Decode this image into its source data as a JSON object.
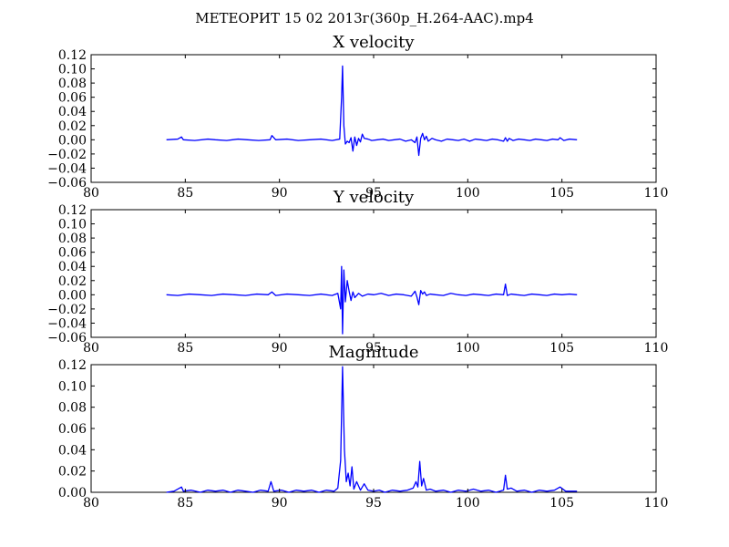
{
  "figure": {
    "suptitle": "МЕТЕОРИТ 15 02 2013г(360p_H.264-AAC).mp4"
  },
  "chart_data": [
    {
      "type": "line",
      "title": "X velocity",
      "xlabel": "",
      "ylabel": "",
      "xlim": [
        80,
        110
      ],
      "ylim": [
        -0.06,
        0.12
      ],
      "xticks": [
        80,
        85,
        90,
        95,
        100,
        105,
        110
      ],
      "yticks": [
        -0.06,
        -0.04,
        -0.02,
        0.0,
        0.02,
        0.04,
        0.06,
        0.08,
        0.1,
        0.12
      ],
      "xtick_labels": [
        "80",
        "85",
        "90",
        "95",
        "100",
        "105",
        "110"
      ],
      "ytick_labels": [
        "−0.06",
        "−0.04",
        "−0.02",
        "0.00",
        "0.02",
        "0.04",
        "0.06",
        "0.08",
        "0.10",
        "0.12"
      ],
      "grid": false,
      "series": [
        {
          "color": "#0000ff",
          "x": [
            84.0,
            84.6,
            84.8,
            84.9,
            85.5,
            86.2,
            86.6,
            87.2,
            87.8,
            88.3,
            88.9,
            89.5,
            89.6,
            89.8,
            90.4,
            91.0,
            91.6,
            92.2,
            92.8,
            93.2,
            93.3,
            93.35,
            93.42,
            93.5,
            93.6,
            93.7,
            93.8,
            93.9,
            94.0,
            94.1,
            94.2,
            94.3,
            94.4,
            94.5,
            94.7,
            94.9,
            95.2,
            95.5,
            95.8,
            96.1,
            96.4,
            96.7,
            97.0,
            97.2,
            97.3,
            97.4,
            97.5,
            97.6,
            97.7,
            97.8,
            97.9,
            98.1,
            98.3,
            98.6,
            98.9,
            99.2,
            99.5,
            99.8,
            100.1,
            100.4,
            100.7,
            101.0,
            101.3,
            101.6,
            101.9,
            102.0,
            102.1,
            102.2,
            102.4,
            102.7,
            103.0,
            103.3,
            103.6,
            103.9,
            104.2,
            104.5,
            104.8,
            104.9,
            105.1,
            105.4,
            105.8
          ],
          "y": [
            0.0,
            0.001,
            0.004,
            0.0,
            -0.001,
            0.001,
            0.0,
            -0.001,
            0.001,
            0.0,
            -0.001,
            0.0,
            0.006,
            0.0,
            0.001,
            -0.001,
            0.0,
            0.001,
            -0.001,
            0.001,
            0.06,
            0.104,
            0.02,
            -0.006,
            -0.002,
            -0.004,
            0.003,
            -0.016,
            0.004,
            -0.008,
            0.002,
            -0.003,
            0.008,
            0.002,
            0.001,
            -0.001,
            0.0,
            0.001,
            -0.001,
            0.0,
            0.001,
            -0.002,
            0.0,
            -0.004,
            0.004,
            -0.022,
            0.002,
            0.009,
            0.0,
            0.005,
            -0.002,
            0.002,
            0.0,
            -0.002,
            0.001,
            0.0,
            -0.001,
            0.001,
            -0.002,
            0.001,
            0.0,
            -0.001,
            0.001,
            0.0,
            -0.002,
            0.003,
            -0.002,
            0.002,
            -0.001,
            0.001,
            0.0,
            -0.001,
            0.001,
            0.0,
            -0.001,
            0.001,
            0.0,
            0.003,
            -0.001,
            0.001,
            0.0
          ]
        }
      ]
    },
    {
      "type": "line",
      "title": "Y velocity",
      "xlabel": "",
      "ylabel": "",
      "xlim": [
        80,
        110
      ],
      "ylim": [
        -0.06,
        0.12
      ],
      "xticks": [
        80,
        85,
        90,
        95,
        100,
        105,
        110
      ],
      "yticks": [
        -0.06,
        -0.04,
        -0.02,
        0.0,
        0.02,
        0.04,
        0.06,
        0.08,
        0.1,
        0.12
      ],
      "xtick_labels": [
        "80",
        "85",
        "90",
        "95",
        "100",
        "105",
        "110"
      ],
      "ytick_labels": [
        "−0.06",
        "−0.04",
        "−0.02",
        "0.00",
        "0.02",
        "0.04",
        "0.06",
        "0.08",
        "0.10",
        "0.12"
      ],
      "grid": false,
      "series": [
        {
          "color": "#0000ff",
          "x": [
            84.0,
            84.6,
            85.2,
            85.8,
            86.4,
            87.0,
            87.6,
            88.2,
            88.8,
            89.4,
            89.6,
            89.8,
            90.4,
            91.0,
            91.6,
            92.2,
            92.8,
            93.1,
            93.25,
            93.3,
            93.35,
            93.42,
            93.5,
            93.6,
            93.7,
            93.8,
            93.9,
            94.0,
            94.2,
            94.4,
            94.7,
            95.0,
            95.4,
            95.8,
            96.2,
            96.6,
            97.0,
            97.2,
            97.3,
            97.4,
            97.5,
            97.6,
            97.7,
            97.8,
            98.0,
            98.3,
            98.7,
            99.1,
            99.5,
            99.9,
            100.3,
            100.7,
            101.1,
            101.5,
            101.9,
            102.0,
            102.1,
            102.3,
            102.6,
            103.0,
            103.4,
            103.8,
            104.2,
            104.6,
            105.0,
            105.4,
            105.8
          ],
          "y": [
            0.0,
            -0.001,
            0.001,
            0.0,
            -0.001,
            0.001,
            0.0,
            -0.001,
            0.001,
            0.0,
            0.004,
            -0.001,
            0.001,
            0.0,
            -0.001,
            0.001,
            -0.001,
            0.002,
            -0.02,
            0.04,
            -0.055,
            0.035,
            -0.01,
            0.02,
            0.005,
            -0.008,
            0.004,
            -0.004,
            0.002,
            -0.002,
            0.001,
            0.0,
            0.002,
            -0.001,
            0.001,
            0.0,
            -0.002,
            0.005,
            -0.003,
            -0.014,
            0.006,
            0.001,
            0.004,
            -0.001,
            0.001,
            0.0,
            -0.001,
            0.002,
            0.0,
            -0.001,
            0.001,
            0.0,
            -0.001,
            0.001,
            0.0,
            0.015,
            -0.001,
            0.001,
            0.0,
            -0.001,
            0.001,
            0.0,
            -0.001,
            0.001,
            0.0,
            0.001,
            0.0
          ]
        }
      ]
    },
    {
      "type": "line",
      "title": "Magnitude",
      "xlabel": "",
      "ylabel": "",
      "xlim": [
        80,
        110
      ],
      "ylim": [
        0.0,
        0.12
      ],
      "xticks": [
        80,
        85,
        90,
        95,
        100,
        105,
        110
      ],
      "yticks": [
        0.0,
        0.02,
        0.04,
        0.06,
        0.08,
        0.1,
        0.12
      ],
      "xtick_labels": [
        "80",
        "85",
        "90",
        "95",
        "100",
        "105",
        "110"
      ],
      "ytick_labels": [
        "0.00",
        "0.02",
        "0.04",
        "0.06",
        "0.08",
        "0.10",
        "0.12"
      ],
      "grid": false,
      "series": [
        {
          "color": "#0000ff",
          "x": [
            84.0,
            84.4,
            84.8,
            84.9,
            85.3,
            85.8,
            86.2,
            86.6,
            87.0,
            87.4,
            87.8,
            88.2,
            88.6,
            89.0,
            89.4,
            89.55,
            89.7,
            90.1,
            90.5,
            90.9,
            91.3,
            91.7,
            92.1,
            92.5,
            92.9,
            93.1,
            93.25,
            93.35,
            93.45,
            93.55,
            93.65,
            93.75,
            93.85,
            93.95,
            94.1,
            94.3,
            94.5,
            94.7,
            95.0,
            95.3,
            95.6,
            96.0,
            96.4,
            96.8,
            97.1,
            97.25,
            97.35,
            97.45,
            97.55,
            97.65,
            97.8,
            98.0,
            98.3,
            98.7,
            99.1,
            99.5,
            99.9,
            100.3,
            100.7,
            101.1,
            101.5,
            101.9,
            102.0,
            102.1,
            102.3,
            102.6,
            103.0,
            103.4,
            103.8,
            104.2,
            104.6,
            104.9,
            105.2,
            105.8
          ],
          "y": [
            0.0,
            0.001,
            0.005,
            0.001,
            0.002,
            0.0,
            0.002,
            0.001,
            0.002,
            0.0,
            0.002,
            0.001,
            0.0,
            0.002,
            0.001,
            0.01,
            0.001,
            0.002,
            0.0,
            0.002,
            0.001,
            0.002,
            0.0,
            0.002,
            0.001,
            0.004,
            0.03,
            0.118,
            0.04,
            0.01,
            0.018,
            0.006,
            0.024,
            0.003,
            0.01,
            0.002,
            0.008,
            0.002,
            0.001,
            0.002,
            0.0,
            0.002,
            0.001,
            0.002,
            0.004,
            0.01,
            0.005,
            0.029,
            0.006,
            0.013,
            0.002,
            0.003,
            0.001,
            0.002,
            0.0,
            0.002,
            0.001,
            0.003,
            0.001,
            0.002,
            0.0,
            0.002,
            0.016,
            0.003,
            0.004,
            0.001,
            0.002,
            0.0,
            0.002,
            0.001,
            0.002,
            0.005,
            0.001,
            0.001
          ]
        }
      ]
    }
  ]
}
